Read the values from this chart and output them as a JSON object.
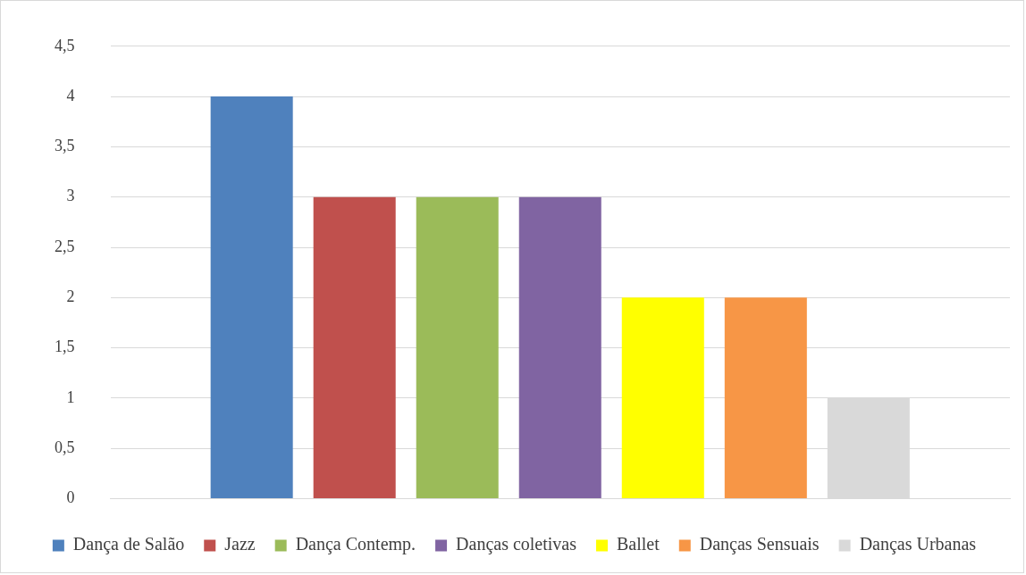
{
  "chart_data": {
    "type": "bar",
    "categories": [
      null
    ],
    "series": [
      {
        "name": "Dança de Salão",
        "color": "#4f81bd",
        "values": [
          4
        ]
      },
      {
        "name": "Jazz",
        "color": "#c0504d",
        "values": [
          3
        ]
      },
      {
        "name": "Dança Contemp.",
        "color": "#9bbb59",
        "values": [
          3
        ]
      },
      {
        "name": "Danças coletivas",
        "color": "#8064a2",
        "values": [
          3
        ]
      },
      {
        "name": "Ballet",
        "color": "#ffff00",
        "values": [
          2
        ]
      },
      {
        "name": "Danças Sensuais",
        "color": "#f79646",
        "values": [
          2
        ]
      },
      {
        "name": "Danças Urbanas",
        "color": "#d9d9d9",
        "values": [
          1
        ]
      }
    ],
    "ylim": [
      0,
      4.5
    ],
    "yticks": [
      0,
      {
        "value": 0.5,
        "label": "0,5"
      },
      1,
      {
        "value": 1.5,
        "label": "1,5"
      },
      2,
      {
        "value": 2.5,
        "label": "2,5"
      },
      3,
      {
        "value": 3.5,
        "label": "3,5"
      },
      4,
      {
        "value": 4.5,
        "label": "4,5"
      }
    ],
    "grid": "y",
    "legend": "bottom"
  }
}
